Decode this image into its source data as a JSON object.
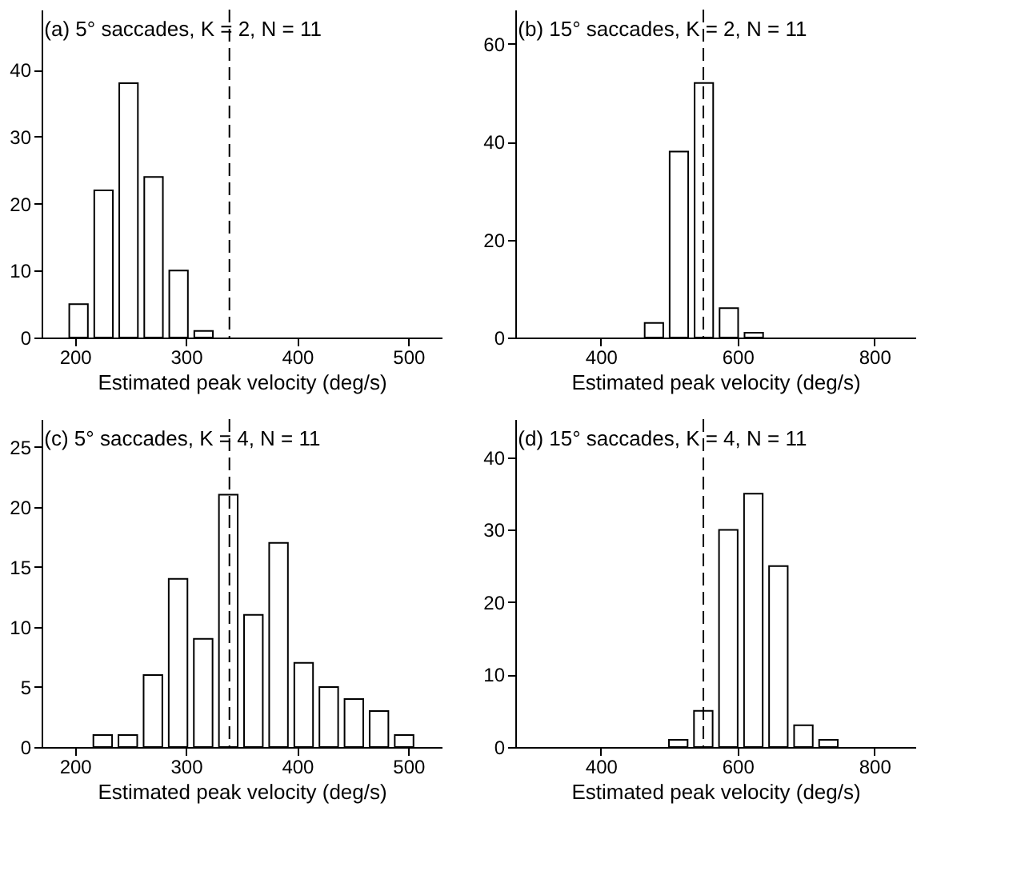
{
  "chart_data": [
    {
      "type": "histogram",
      "title": "(a) 5° saccades, K = 2, N = 11",
      "xlabel": "Estimated peak velocity (deg/s)",
      "color": "#ffffff",
      "grid": false,
      "bins": [
        192,
        214.5,
        237,
        259.5,
        282,
        304.5,
        327
      ],
      "values": [
        5,
        22,
        38,
        24,
        10,
        1
      ],
      "xlim": [
        170,
        530
      ],
      "xticks": [
        200,
        300,
        400,
        500
      ],
      "ylim": [
        0,
        49
      ],
      "yticks": [
        0,
        10,
        20,
        30,
        40
      ],
      "ref_lines": [
        {
          "axis": "x",
          "value": 339,
          "line_style": "dashed",
          "color": "#000000"
        }
      ]
    },
    {
      "type": "histogram",
      "title": "(b) 15° saccades, K = 2, N = 11",
      "xlabel": "Estimated peak velocity (deg/s)",
      "color": "#ffffff",
      "grid": false,
      "bins": [
        459.5,
        496,
        532.5,
        569,
        605.5,
        642
      ],
      "values": [
        3,
        38,
        52,
        6,
        1
      ],
      "xlim": [
        275,
        860
      ],
      "xticks": [
        400,
        600,
        800
      ],
      "ylim": [
        0,
        67
      ],
      "yticks": [
        0,
        20,
        40,
        60
      ],
      "ref_lines": [
        {
          "axis": "x",
          "value": 550,
          "line_style": "dashed",
          "color": "#000000"
        }
      ]
    },
    {
      "type": "histogram",
      "title": "(c) 5° saccades, K = 4, N = 11",
      "xlabel": "Estimated peak velocity (deg/s)",
      "color": "#ffffff",
      "grid": false,
      "bins": [
        213.7,
        236.3,
        258.9,
        281.5,
        304.1,
        326.7,
        349.3,
        371.9,
        394.5,
        417.1,
        439.7,
        462.3,
        484.9,
        507.5
      ],
      "values": [
        1,
        1,
        6,
        14,
        9,
        21,
        11,
        17,
        7,
        5,
        4,
        3,
        1
      ],
      "xlim": [
        170,
        530
      ],
      "xticks": [
        200,
        300,
        400,
        500
      ],
      "ylim": [
        0,
        27.3
      ],
      "yticks": [
        0,
        5,
        10,
        15,
        20,
        25
      ],
      "ref_lines": [
        {
          "axis": "x",
          "value": 339,
          "line_style": "dashed",
          "color": "#000000"
        }
      ]
    },
    {
      "type": "histogram",
      "title": "(d) 15° saccades, K = 4, N = 11",
      "xlabel": "Estimated peak velocity (deg/s)",
      "color": "#ffffff",
      "grid": false,
      "bins": [
        495,
        531.6,
        568.2,
        604.8,
        641.4,
        678,
        714.6,
        751.2
      ],
      "values": [
        1,
        5,
        30,
        35,
        25,
        3,
        1
      ],
      "xlim": [
        275,
        860
      ],
      "xticks": [
        400,
        600,
        800
      ],
      "ylim": [
        0,
        45.3
      ],
      "yticks": [
        0,
        10,
        20,
        30,
        40
      ],
      "ref_lines": [
        {
          "axis": "x",
          "value": 550,
          "line_style": "dashed",
          "color": "#000000"
        }
      ]
    }
  ]
}
